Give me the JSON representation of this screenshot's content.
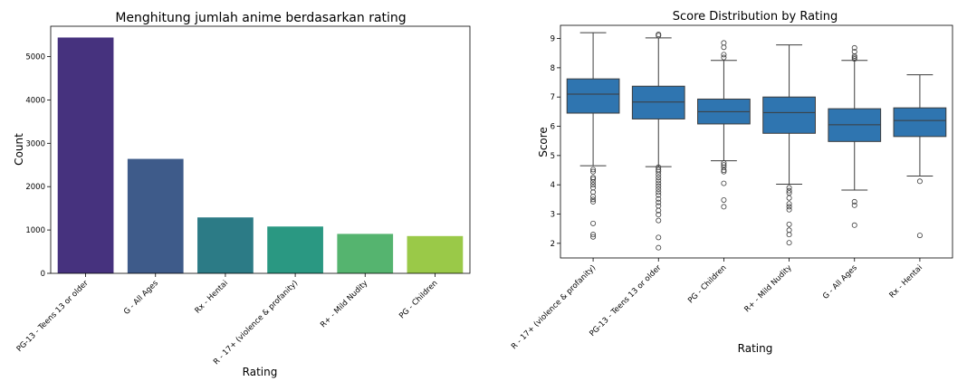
{
  "chart_data": [
    {
      "type": "bar",
      "title": "Menghitung jumlah anime berdasarkan rating",
      "xlabel": "Rating",
      "ylabel": "Count",
      "categories": [
        "PG-13 - Teens 13 or older",
        "G - All Ages",
        "Rx - Hentai",
        "R - 17+ (violence & profanity)",
        "R+ - Mild Nudity",
        "PG - Children"
      ],
      "values": [
        5440,
        2640,
        1290,
        1080,
        910,
        860
      ],
      "colors": [
        "#46327e",
        "#3e5b8a",
        "#2c7b86",
        "#2a9882",
        "#55b46f",
        "#9ac948"
      ],
      "ylim": [
        0,
        5700
      ],
      "yticks": [
        0,
        1000,
        2000,
        3000,
        4000,
        5000
      ],
      "grid": false
    },
    {
      "type": "box",
      "title": "Score Distribution by Rating",
      "xlabel": "Rating",
      "ylabel": "Score",
      "ylim": [
        1.5,
        9.45
      ],
      "yticks": [
        2,
        3,
        4,
        5,
        6,
        7,
        8,
        9
      ],
      "color": "#2f75b0",
      "grid": false,
      "categories": [
        "R - 17+ (violence & profanity)",
        "PG-13 - Teens 13 or older",
        "PG - Children",
        "R+ - Mild Nudity",
        "G - All Ages",
        "Rx - Hentai"
      ],
      "boxes": [
        {
          "whislo": 4.65,
          "q1": 6.45,
          "med": 7.1,
          "q3": 7.62,
          "whishi": 9.2,
          "fliers": [
            4.52,
            4.45,
            4.25,
            4.2,
            4.1,
            4.0,
            3.9,
            3.75,
            3.6,
            3.5,
            3.42,
            2.68,
            2.3,
            2.22
          ]
        },
        {
          "whislo": 4.62,
          "q1": 6.25,
          "med": 6.83,
          "q3": 7.37,
          "whishi": 9.02,
          "fliers": [
            9.14,
            9.1,
            4.6,
            4.52,
            4.45,
            4.35,
            4.25,
            4.15,
            4.05,
            3.95,
            3.85,
            3.75,
            3.65,
            3.52,
            3.4,
            3.28,
            3.12,
            2.98,
            2.78,
            2.2,
            1.85
          ]
        },
        {
          "whislo": 4.82,
          "q1": 6.08,
          "med": 6.5,
          "q3": 6.93,
          "whishi": 8.25,
          "fliers": [
            8.85,
            8.7,
            8.45,
            8.35,
            4.75,
            4.68,
            4.6,
            4.5,
            4.45,
            4.05,
            3.48,
            3.25
          ]
        },
        {
          "whislo": 4.02,
          "q1": 5.76,
          "med": 6.47,
          "q3": 7.0,
          "whishi": 8.78,
          "fliers": [
            3.9,
            3.8,
            3.72,
            3.55,
            3.35,
            3.25,
            3.15,
            2.65,
            2.45,
            2.3,
            2.02
          ]
        },
        {
          "whislo": 3.82,
          "q1": 5.48,
          "med": 6.05,
          "q3": 6.6,
          "whishi": 8.25,
          "fliers": [
            8.68,
            8.55,
            8.4,
            8.35,
            8.3,
            3.42,
            3.3,
            2.62
          ]
        },
        {
          "whislo": 4.3,
          "q1": 5.65,
          "med": 6.2,
          "q3": 6.63,
          "whishi": 7.76,
          "fliers": [
            4.12,
            2.27
          ]
        }
      ]
    }
  ]
}
